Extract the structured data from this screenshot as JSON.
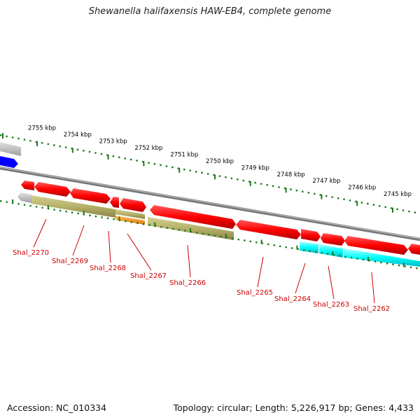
{
  "title": "Shewanella halifaxensis HAW-EB4, complete genome",
  "footer": {
    "accession": "Accession: NC_010334",
    "topology": "Topology: circular; Length: 5,226,917 bp; Genes: 4,433"
  },
  "ruler": {
    "labels": [
      "2755 kbp",
      "2754 kbp",
      "2753 kbp",
      "2752 kbp",
      "2751 kbp",
      "2750 kbp",
      "2749 kbp",
      "2748 kbp",
      "2747 kbp",
      "2746 kbp",
      "2745 kbp"
    ]
  },
  "genes": [
    "Shal_2270",
    "Shal_2269",
    "Shal_2268",
    "Shal_2267",
    "Shal_2266",
    "Shal_2265",
    "Shal_2264",
    "Shal_2263",
    "Shal_2262"
  ],
  "colors": {
    "forward_cds": "#ff0000",
    "reverse_cds": "#b5b069",
    "highlight_orange": "#ff9900",
    "cyan_feature": "#00ffff",
    "blue_feature": "#0000ff",
    "ruler_ticks": "#1a7a1a",
    "gene_labels": "#cc0000",
    "backbone": "#808080"
  }
}
